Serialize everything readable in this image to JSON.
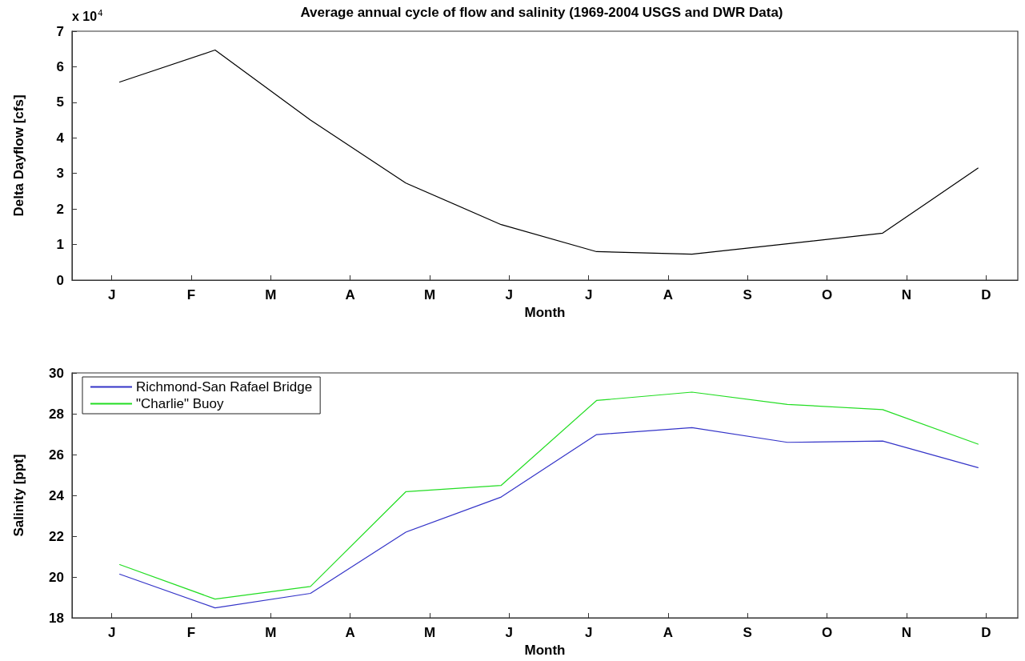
{
  "chart_data": [
    {
      "type": "line",
      "title": "Average annual cycle of flow and salinity (1969-2004 USGS and DWR Data)",
      "xlabel": "Month",
      "ylabel": "Delta Dayflow [cfs]",
      "annotations": [
        "x 10$^{4}$"
      ],
      "categories": [
        null,
        null,
        null,
        null,
        null,
        "J",
        null,
        null,
        null,
        null,
        null,
        null,
        null,
        null,
        null,
        "F",
        null,
        null,
        null,
        null,
        null,
        null,
        null,
        null,
        null,
        "M",
        null,
        null,
        null,
        null,
        null,
        null,
        null,
        null,
        null,
        "A",
        null,
        null,
        null,
        null,
        null,
        null,
        null,
        null,
        null,
        "M",
        null,
        null,
        null,
        null,
        null,
        null,
        null,
        null,
        null,
        "J",
        null,
        null,
        null,
        null,
        null,
        null,
        null,
        null,
        null,
        "J",
        null,
        null,
        null,
        null,
        null,
        null,
        null,
        null,
        null,
        "A",
        null,
        null,
        null,
        null,
        null,
        null,
        null,
        null,
        null,
        "S",
        null,
        null,
        null,
        null,
        null,
        null,
        null,
        null,
        null,
        "O",
        null,
        null,
        null,
        null,
        null,
        null,
        null,
        null,
        null,
        "N",
        null,
        null,
        null,
        null,
        null,
        null,
        null,
        null,
        null,
        "D",
        null,
        null,
        null,
        null
      ],
      "series": [
        {
          "color": "#000000",
          "values": [
            null,
            null,
            null,
            null,
            null,
            null,
            5.57,
            null,
            null,
            null,
            null,
            null,
            null,
            null,
            null,
            null,
            null,
            null,
            6.47,
            null,
            null,
            null,
            null,
            null,
            null,
            null,
            null,
            null,
            null,
            null,
            4.5,
            null,
            null,
            null,
            null,
            null,
            null,
            null,
            null,
            null,
            null,
            null,
            2.73,
            null,
            null,
            null,
            null,
            null,
            null,
            null,
            null,
            null,
            null,
            null,
            1.56,
            null,
            null,
            null,
            null,
            null,
            null,
            null,
            null,
            null,
            null,
            null,
            0.8,
            null,
            null,
            null,
            null,
            null,
            null,
            null,
            null,
            null,
            null,
            null,
            0.73,
            null,
            null,
            null,
            null,
            null,
            null,
            null,
            null,
            null,
            null,
            null,
            1.02,
            null,
            null,
            null,
            null,
            null,
            null,
            null,
            null,
            null,
            null,
            null,
            1.32,
            null,
            null,
            null,
            null,
            null,
            null,
            null,
            null,
            null,
            null,
            null,
            3.15,
            null,
            null,
            null,
            null,
            null
          ]
        }
      ],
      "ylim": [
        0,
        7
      ],
      "yticks": [
        0,
        1,
        2,
        3,
        4,
        5,
        6,
        7
      ],
      "legend": false
    },
    {
      "type": "line",
      "xlabel": "Month",
      "ylabel": "Salinity [ppt]",
      "categories": [
        null,
        null,
        null,
        null,
        null,
        "J",
        null,
        null,
        null,
        null,
        null,
        null,
        null,
        null,
        null,
        "F",
        null,
        null,
        null,
        null,
        null,
        null,
        null,
        null,
        null,
        "M",
        null,
        null,
        null,
        null,
        null,
        null,
        null,
        null,
        null,
        "A",
        null,
        null,
        null,
        null,
        null,
        null,
        null,
        null,
        null,
        "M",
        null,
        null,
        null,
        null,
        null,
        null,
        null,
        null,
        null,
        "J",
        null,
        null,
        null,
        null,
        null,
        null,
        null,
        null,
        null,
        "J",
        null,
        null,
        null,
        null,
        null,
        null,
        null,
        null,
        null,
        "A",
        null,
        null,
        null,
        null,
        null,
        null,
        null,
        null,
        null,
        "S",
        null,
        null,
        null,
        null,
        null,
        null,
        null,
        null,
        null,
        "O",
        null,
        null,
        null,
        null,
        null,
        null,
        null,
        null,
        null,
        "N",
        null,
        null,
        null,
        null,
        null,
        null,
        null,
        null,
        null,
        "D",
        null,
        null,
        null,
        null
      ],
      "series": [
        {
          "name": "Richmond-San Rafael Bridge",
          "color": "#3434c8",
          "values": [
            null,
            null,
            null,
            null,
            null,
            null,
            20.14,
            null,
            null,
            null,
            null,
            null,
            null,
            null,
            null,
            null,
            null,
            null,
            18.49,
            null,
            null,
            null,
            null,
            null,
            null,
            null,
            null,
            null,
            null,
            null,
            19.2,
            null,
            null,
            null,
            null,
            null,
            null,
            null,
            null,
            null,
            null,
            null,
            22.2,
            null,
            null,
            null,
            null,
            null,
            null,
            null,
            null,
            null,
            null,
            null,
            23.92,
            null,
            null,
            null,
            null,
            null,
            null,
            null,
            null,
            null,
            null,
            null,
            26.98,
            null,
            null,
            null,
            null,
            null,
            null,
            null,
            null,
            null,
            null,
            null,
            27.32,
            null,
            null,
            null,
            null,
            null,
            null,
            null,
            null,
            null,
            null,
            null,
            26.6,
            null,
            null,
            null,
            null,
            null,
            null,
            null,
            null,
            null,
            null,
            null,
            26.66,
            null,
            null,
            null,
            null,
            null,
            null,
            null,
            null,
            null,
            null,
            null,
            25.36,
            null,
            null,
            null,
            null,
            null
          ]
        },
        {
          "name": "\"Charlie\" Buoy",
          "color": "#22dd22",
          "values": [
            null,
            null,
            null,
            null,
            null,
            null,
            20.61,
            null,
            null,
            null,
            null,
            null,
            null,
            null,
            null,
            null,
            null,
            null,
            18.92,
            null,
            null,
            null,
            null,
            null,
            null,
            null,
            null,
            null,
            null,
            null,
            19.54,
            null,
            null,
            null,
            null,
            null,
            null,
            null,
            null,
            null,
            null,
            null,
            24.18,
            null,
            null,
            null,
            null,
            null,
            null,
            null,
            null,
            null,
            null,
            null,
            24.49,
            null,
            null,
            null,
            null,
            null,
            null,
            null,
            null,
            null,
            null,
            null,
            28.65,
            null,
            null,
            null,
            null,
            null,
            null,
            null,
            null,
            null,
            null,
            null,
            29.06,
            null,
            null,
            null,
            null,
            null,
            null,
            null,
            null,
            null,
            null,
            null,
            28.46,
            null,
            null,
            null,
            null,
            null,
            null,
            null,
            null,
            null,
            null,
            null,
            28.2,
            null,
            null,
            null,
            null,
            null,
            null,
            null,
            null,
            null,
            null,
            null,
            26.51,
            null,
            null,
            null,
            null,
            null
          ]
        }
      ],
      "ylim": [
        18,
        30
      ],
      "yticks": [
        18,
        20,
        22,
        24,
        26,
        28,
        30
      ],
      "legend": "top left"
    }
  ]
}
